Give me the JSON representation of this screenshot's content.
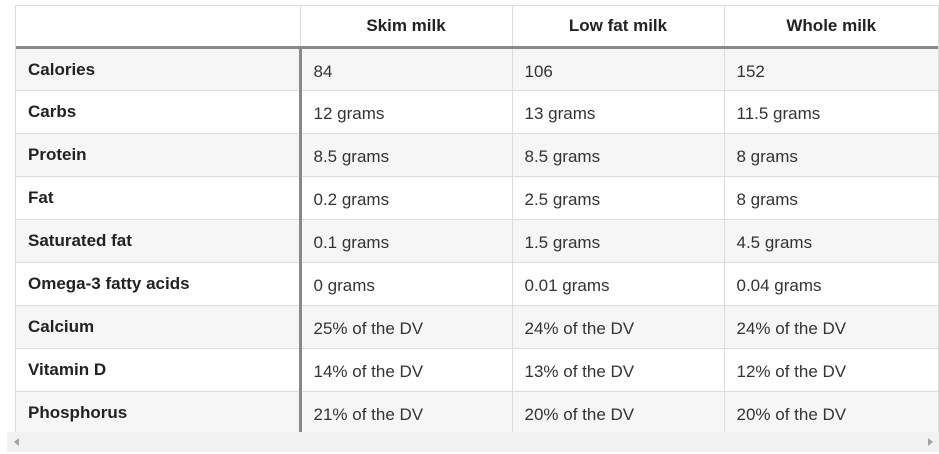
{
  "table": {
    "columns": [
      "",
      "Skim milk",
      "Low fat milk",
      "Whole milk"
    ],
    "rows": [
      {
        "label": "Calories",
        "values": [
          "84",
          "106",
          "152"
        ]
      },
      {
        "label": "Carbs",
        "values": [
          "12 grams",
          "13 grams",
          "11.5 grams"
        ]
      },
      {
        "label": "Protein",
        "values": [
          "8.5 grams",
          "8.5 grams",
          "8 grams"
        ]
      },
      {
        "label": "Fat",
        "values": [
          "0.2 grams",
          "2.5 grams",
          "8 grams"
        ]
      },
      {
        "label": "Saturated fat",
        "values": [
          "0.1 grams",
          "1.5 grams",
          "4.5 grams"
        ]
      },
      {
        "label": "Omega-3 fatty acids",
        "values": [
          "0 grams",
          "0.01 grams",
          "0.04 grams"
        ]
      },
      {
        "label": "Calcium",
        "values": [
          "25% of the DV",
          "24% of the DV",
          "24% of the DV"
        ]
      },
      {
        "label": "Vitamin D",
        "values": [
          "14% of the DV",
          "13% of the DV",
          "12% of the DV"
        ]
      },
      {
        "label": "Phosphorus",
        "values": [
          "21% of the DV",
          "20% of the DV",
          "20% of the DV"
        ]
      }
    ]
  },
  "scrollbar": {
    "left_icon": "chevron-left-icon",
    "right_icon": "chevron-right-icon"
  }
}
